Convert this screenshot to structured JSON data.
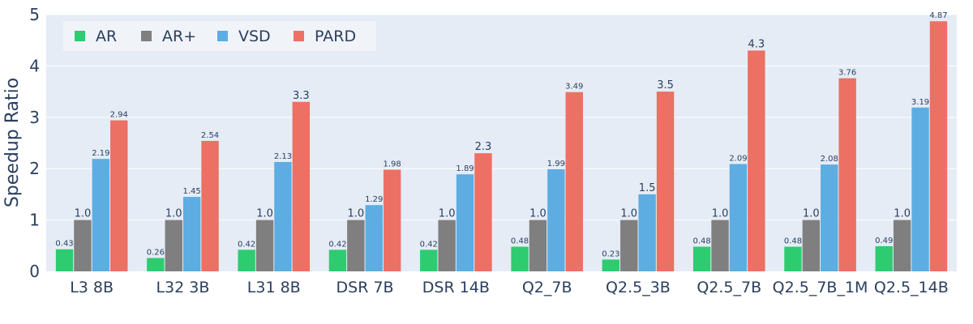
{
  "chart_data": {
    "type": "bar",
    "title": "",
    "xlabel": "",
    "ylabel": "Speedup Ratio",
    "ylim": [
      0,
      5
    ],
    "yticks": [
      0,
      1,
      2,
      3,
      4,
      5
    ],
    "grid": true,
    "legend_position": "top-left",
    "categories": [
      "L3 8B",
      "L32 3B",
      "L31 8B",
      "DSR 7B",
      "DSR 14B",
      "Q2_7B",
      "Q2.5_3B",
      "Q2.5_7B",
      "Q2.5_7B_1M",
      "Q2.5_14B"
    ],
    "series": [
      {
        "name": "AR",
        "color": "#2ecc71",
        "values": [
          0.43,
          0.26,
          0.42,
          0.42,
          0.42,
          0.48,
          0.23,
          0.48,
          0.48,
          0.49
        ],
        "labels": [
          "0.43",
          "0.26",
          "0.42",
          "0.42",
          "0.42",
          "0.48",
          "0.23",
          "0.48",
          "0.48",
          "0.49"
        ]
      },
      {
        "name": "AR+",
        "color": "#7f7f7f",
        "values": [
          1.0,
          1.0,
          1.0,
          1.0,
          1.0,
          1.0,
          1.0,
          1.0,
          1.0,
          1.0
        ],
        "labels": [
          "1.0",
          "1.0",
          "1.0",
          "1.0",
          "1.0",
          "1.0",
          "1.0",
          "1.0",
          "1.0",
          "1.0"
        ]
      },
      {
        "name": "VSD",
        "color": "#5dade2",
        "values": [
          2.19,
          1.45,
          2.13,
          1.29,
          1.89,
          1.99,
          1.5,
          2.09,
          2.08,
          3.19
        ],
        "labels": [
          "2.19",
          "1.45",
          "2.13",
          "1.29",
          "1.89",
          "1.99",
          "1.5",
          "2.09",
          "2.08",
          "3.19"
        ]
      },
      {
        "name": "PARD",
        "color": "#ec7063",
        "values": [
          2.94,
          2.54,
          3.3,
          1.98,
          2.3,
          3.49,
          3.5,
          4.3,
          3.76,
          4.87
        ],
        "labels": [
          "2.94",
          "2.54",
          "3.3",
          "1.98",
          "2.3",
          "3.49",
          "3.5",
          "4.3",
          "3.76",
          "4.87"
        ]
      }
    ]
  },
  "colors": {
    "plot_background": "#e5ecf6",
    "gridline": "#ffffff",
    "text": "#2a3f5f",
    "legend_background": "#f0f3f8"
  }
}
